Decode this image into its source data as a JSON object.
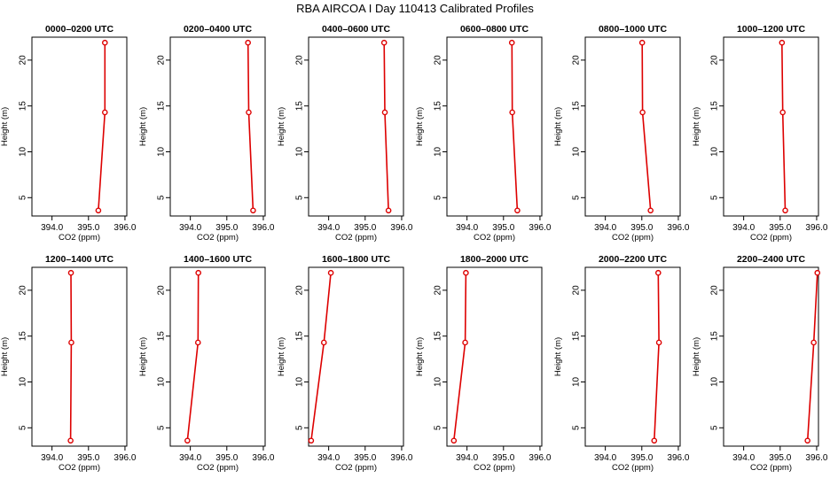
{
  "suptitle": "RBA AIRCOA I  Day 110413  Calibrated Profiles",
  "chart_data": [
    {
      "type": "line",
      "title": "0000–0200 UTC",
      "xlabel": "CO2 (ppm)",
      "ylabel": "Height (m)",
      "xlim": [
        393.45,
        396.05
      ],
      "ylim": [
        3,
        22.5
      ],
      "xticks": [
        "394.0",
        "395.0",
        "396.0"
      ],
      "yticks": [
        "5",
        "10",
        "15",
        "20"
      ],
      "x": [
        395.27,
        395.45,
        395.45
      ],
      "y": [
        3.6,
        14.3,
        21.9
      ]
    },
    {
      "type": "line",
      "title": "0200–0400 UTC",
      "xlabel": "CO2 (ppm)",
      "ylabel": "Height (m)",
      "xlim": [
        393.45,
        396.05
      ],
      "ylim": [
        3,
        22.5
      ],
      "xticks": [
        "394.0",
        "395.0",
        "396.0"
      ],
      "yticks": [
        "5",
        "10",
        "15",
        "20"
      ],
      "x": [
        395.72,
        395.6,
        395.58
      ],
      "y": [
        3.6,
        14.3,
        21.9
      ]
    },
    {
      "type": "line",
      "title": "0400–0600 UTC",
      "xlabel": "CO2 (ppm)",
      "ylabel": "Height (m)",
      "xlim": [
        393.45,
        396.05
      ],
      "ylim": [
        3,
        22.5
      ],
      "xticks": [
        "394.0",
        "395.0",
        "396.0"
      ],
      "yticks": [
        "5",
        "10",
        "15",
        "20"
      ],
      "x": [
        395.64,
        395.54,
        395.52
      ],
      "y": [
        3.6,
        14.3,
        21.9
      ]
    },
    {
      "type": "line",
      "title": "0600–0800 UTC",
      "xlabel": "CO2 (ppm)",
      "ylabel": "Height (m)",
      "xlim": [
        393.45,
        396.05
      ],
      "ylim": [
        3,
        22.5
      ],
      "xticks": [
        "394.0",
        "395.0",
        "396.0"
      ],
      "yticks": [
        "5",
        "10",
        "15",
        "20"
      ],
      "x": [
        395.38,
        395.24,
        395.23
      ],
      "y": [
        3.6,
        14.3,
        21.9
      ]
    },
    {
      "type": "line",
      "title": "0800–1000 UTC",
      "xlabel": "CO2 (ppm)",
      "ylabel": "Height (m)",
      "xlim": [
        393.45,
        396.05
      ],
      "ylim": [
        3,
        22.5
      ],
      "xticks": [
        "394.0",
        "395.0",
        "396.0"
      ],
      "yticks": [
        "5",
        "10",
        "15",
        "20"
      ],
      "x": [
        395.24,
        395.02,
        395.01
      ],
      "y": [
        3.6,
        14.3,
        21.9
      ]
    },
    {
      "type": "line",
      "title": "1000–1200 UTC",
      "xlabel": "CO2 (ppm)",
      "ylabel": "Height (m)",
      "xlim": [
        393.45,
        396.05
      ],
      "ylim": [
        3,
        22.5
      ],
      "xticks": [
        "394.0",
        "395.0",
        "396.0"
      ],
      "yticks": [
        "5",
        "10",
        "15",
        "20"
      ],
      "x": [
        395.14,
        395.07,
        395.05
      ],
      "y": [
        3.6,
        14.3,
        21.9
      ]
    },
    {
      "type": "line",
      "title": "1200–1400 UTC",
      "xlabel": "CO2 (ppm)",
      "ylabel": "Height (m)",
      "xlim": [
        393.45,
        396.05
      ],
      "ylim": [
        3,
        22.5
      ],
      "xticks": [
        "394.0",
        "395.0",
        "396.0"
      ],
      "yticks": [
        "5",
        "10",
        "15",
        "20"
      ],
      "x": [
        394.51,
        394.53,
        394.52
      ],
      "y": [
        3.6,
        14.3,
        21.9
      ]
    },
    {
      "type": "line",
      "title": "1400–1600 UTC",
      "xlabel": "CO2 (ppm)",
      "ylabel": "Height (m)",
      "xlim": [
        393.45,
        396.05
      ],
      "ylim": [
        3,
        22.5
      ],
      "xticks": [
        "394.0",
        "395.0",
        "396.0"
      ],
      "yticks": [
        "5",
        "10",
        "15",
        "20"
      ],
      "x": [
        393.92,
        394.21,
        394.22
      ],
      "y": [
        3.6,
        14.3,
        21.9
      ]
    },
    {
      "type": "line",
      "title": "1600–1800 UTC",
      "xlabel": "CO2 (ppm)",
      "ylabel": "Height (m)",
      "xlim": [
        393.45,
        396.05
      ],
      "ylim": [
        3,
        22.5
      ],
      "xticks": [
        "394.0",
        "395.0",
        "396.0"
      ],
      "yticks": [
        "5",
        "10",
        "15",
        "20"
      ],
      "x": [
        393.52,
        393.87,
        394.06
      ],
      "y": [
        3.6,
        14.3,
        21.9
      ]
    },
    {
      "type": "line",
      "title": "1800–2000 UTC",
      "xlabel": "CO2 (ppm)",
      "ylabel": "Height (m)",
      "xlim": [
        393.45,
        396.05
      ],
      "ylim": [
        3,
        22.5
      ],
      "xticks": [
        "394.0",
        "395.0",
        "396.0"
      ],
      "yticks": [
        "5",
        "10",
        "15",
        "20"
      ],
      "x": [
        393.64,
        393.95,
        393.97
      ],
      "y": [
        3.6,
        14.3,
        21.9
      ]
    },
    {
      "type": "line",
      "title": "2000–2200 UTC",
      "xlabel": "CO2 (ppm)",
      "ylabel": "Height (m)",
      "xlim": [
        393.45,
        396.05
      ],
      "ylim": [
        3,
        22.5
      ],
      "xticks": [
        "394.0",
        "395.0",
        "396.0"
      ],
      "yticks": [
        "5",
        "10",
        "15",
        "20"
      ],
      "x": [
        395.34,
        395.47,
        395.45
      ],
      "y": [
        3.6,
        14.3,
        21.9
      ]
    },
    {
      "type": "line",
      "title": "2200–2400 UTC",
      "xlabel": "CO2 (ppm)",
      "ylabel": "Height (m)",
      "xlim": [
        393.45,
        396.05
      ],
      "ylim": [
        3,
        22.5
      ],
      "xticks": [
        "394.0",
        "395.0",
        "396.0"
      ],
      "yticks": [
        "5",
        "10",
        "15",
        "20"
      ],
      "x": [
        395.75,
        395.92,
        396.02
      ],
      "y": [
        3.6,
        14.3,
        21.9
      ]
    }
  ],
  "colors": {
    "line": "#dd0000",
    "marker": "#dd0000",
    "axis": "#000000"
  }
}
